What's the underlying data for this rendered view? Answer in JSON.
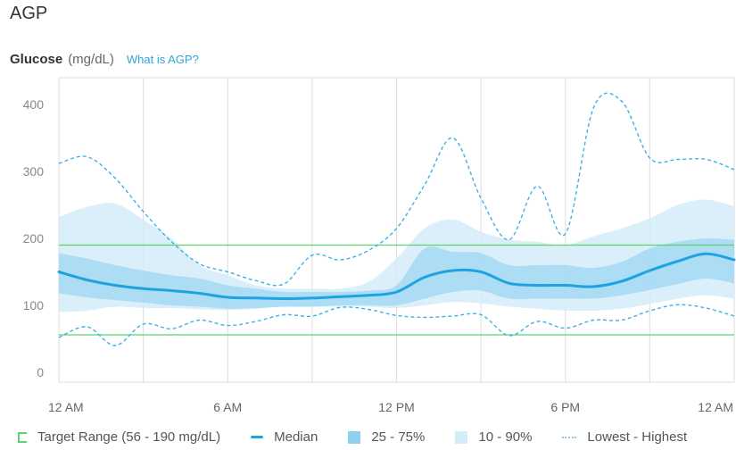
{
  "header": {
    "title": "AGP",
    "metric": "Glucose",
    "unit": "(mg/dL)",
    "help_link": "What is AGP?"
  },
  "colors": {
    "median": "#1fa3e0",
    "iqr_band": "#8ed0f0",
    "outer_band": "#d4ecf8",
    "range_line": "#3fb0e8",
    "target_line": "#5cd36a",
    "grid": "#dddddd",
    "link": "#2ea6d8"
  },
  "chart_data": {
    "type": "area",
    "xlabel": "",
    "ylabel": "",
    "xlim": [
      0,
      24
    ],
    "ylim": [
      0,
      420
    ],
    "yticks": [
      0,
      100,
      200,
      300,
      400
    ],
    "xticks": [
      {
        "value": 0,
        "label": "12 AM"
      },
      {
        "value": 6,
        "label": "6 AM"
      },
      {
        "value": 12,
        "label": "12 PM"
      },
      {
        "value": 18,
        "label": "6 PM"
      },
      {
        "value": 24,
        "label": "12 AM"
      }
    ],
    "x_gridlines_hours": [
      3,
      6,
      9,
      12,
      15,
      18,
      21
    ],
    "target_range": {
      "low": 56,
      "high": 190
    },
    "x": [
      0,
      1,
      2,
      3,
      4,
      5,
      6,
      7,
      8,
      9,
      10,
      11,
      12,
      13,
      14,
      15,
      16,
      17,
      18,
      19,
      20,
      21,
      22,
      23,
      24
    ],
    "series": [
      {
        "name": "Median",
        "kind": "median",
        "values": [
          150,
          138,
          130,
          125,
          122,
          118,
          112,
          111,
          110,
          111,
          113,
          115,
          120,
          142,
          152,
          150,
          133,
          130,
          130,
          128,
          136,
          152,
          166,
          177,
          168
        ]
      },
      {
        "name": "25 - 75%",
        "kind": "band",
        "low": [
          118,
          112,
          108,
          104,
          100,
          98,
          95,
          96,
          98,
          98,
          100,
          100,
          100,
          110,
          120,
          122,
          110,
          110,
          110,
          110,
          115,
          123,
          132,
          140,
          133
        ],
        "high": [
          178,
          170,
          160,
          152,
          145,
          140,
          130,
          125,
          120,
          120,
          120,
          122,
          130,
          185,
          180,
          178,
          160,
          160,
          160,
          156,
          165,
          185,
          195,
          200,
          198
        ]
      },
      {
        "name": "10 - 90%",
        "kind": "band",
        "low": [
          90,
          92,
          98,
          96,
          96,
          94,
          93,
          95,
          98,
          98,
          98,
          98,
          96,
          100,
          105,
          103,
          98,
          95,
          92,
          92,
          95,
          102,
          110,
          115,
          110
        ],
        "high": [
          232,
          247,
          252,
          228,
          200,
          160,
          145,
          130,
          125,
          125,
          125,
          135,
          170,
          215,
          228,
          210,
          198,
          195,
          190,
          203,
          215,
          230,
          250,
          258,
          248
        ]
      },
      {
        "name": "Lowest - Highest",
        "kind": "range",
        "low": [
          52,
          68,
          40,
          72,
          65,
          78,
          70,
          76,
          86,
          84,
          97,
          94,
          85,
          82,
          84,
          86,
          55,
          76,
          66,
          78,
          78,
          92,
          101,
          96,
          84
        ],
        "high": [
          312,
          322,
          290,
          240,
          195,
          162,
          150,
          137,
          132,
          175,
          168,
          182,
          215,
          280,
          350,
          260,
          198,
          278,
          207,
          395,
          405,
          320,
          318,
          318,
          303
        ]
      }
    ],
    "legend": [
      {
        "key": "target",
        "label": "Target Range (56 - 190 mg/dL)"
      },
      {
        "key": "median",
        "label": "Median"
      },
      {
        "key": "iqr",
        "label": "25 - 75%"
      },
      {
        "key": "band",
        "label": "10 - 90%"
      },
      {
        "key": "range",
        "label": "Lowest - Highest"
      }
    ],
    "legend_position": "bottom",
    "grid": true
  }
}
